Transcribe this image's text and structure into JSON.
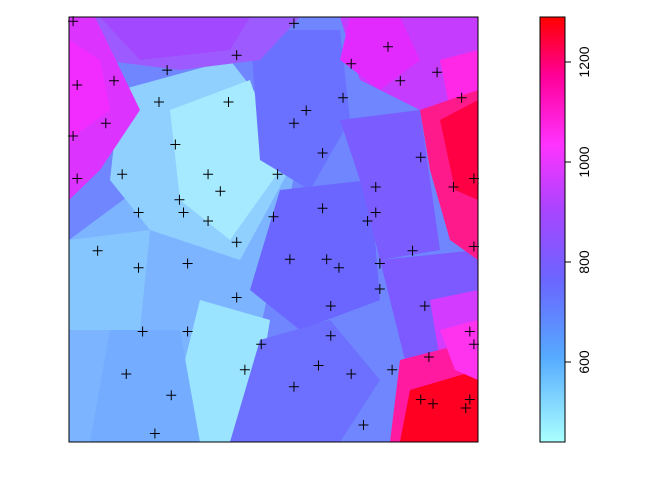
{
  "chart_data": {
    "type": "heatmap",
    "title": "",
    "xlabel": "",
    "ylabel": "",
    "axes_shown": false,
    "colorbar": {
      "range": [
        440,
        1290
      ],
      "ticks": [
        600,
        800,
        1000,
        1200
      ],
      "tick_labels": [
        "600",
        "800",
        "1000",
        "1200"
      ],
      "orientation": "vertical",
      "position": "right",
      "colors": [
        "#aaffff",
        "#55aaff",
        "#6a66ff",
        "#aa44ff",
        "#ff33ff",
        "#ff0066",
        "#ff0000"
      ]
    },
    "surface": {
      "interpolation": "nearest-neighbour/triangulated patches",
      "ranges": {
        "x": [
          0,
          1
        ],
        "y": [
          0,
          1
        ]
      },
      "regions": [
        {
          "label": "low values (cyan)",
          "center": [
            0.4,
            0.6
          ],
          "value": 520
        },
        {
          "label": "low values (cyan)",
          "center": [
            0.45,
            0.18
          ],
          "value": 540
        },
        {
          "label": "mid values (light blue)",
          "center": [
            0.15,
            0.35
          ],
          "value": 640
        },
        {
          "label": "mid values (blue)",
          "center": [
            0.65,
            0.45
          ],
          "value": 760
        },
        {
          "label": "high values (violet)",
          "center": [
            0.5,
            0.95
          ],
          "value": 860
        },
        {
          "label": "very high (magenta)",
          "center": [
            0.03,
            0.85
          ],
          "value": 1020
        },
        {
          "label": "very high (magenta)",
          "center": [
            0.75,
            0.9
          ],
          "value": 980
        },
        {
          "label": "peak (red)",
          "center": [
            0.96,
            0.72
          ],
          "value": 1200
        },
        {
          "label": "peak (red)",
          "center": [
            0.95,
            0.07
          ],
          "value": 1290
        }
      ]
    },
    "points": [
      {
        "x": 0.01,
        "y": 0.99
      },
      {
        "x": 0.55,
        "y": 0.985
      },
      {
        "x": 0.78,
        "y": 0.93
      },
      {
        "x": 0.41,
        "y": 0.91
      },
      {
        "x": 0.69,
        "y": 0.89
      },
      {
        "x": 0.24,
        "y": 0.875
      },
      {
        "x": 0.9,
        "y": 0.87
      },
      {
        "x": 0.81,
        "y": 0.85
      },
      {
        "x": 0.02,
        "y": 0.84
      },
      {
        "x": 0.11,
        "y": 0.85
      },
      {
        "x": 0.67,
        "y": 0.81
      },
      {
        "x": 0.22,
        "y": 0.8
      },
      {
        "x": 0.39,
        "y": 0.8
      },
      {
        "x": 0.96,
        "y": 0.81
      },
      {
        "x": 0.58,
        "y": 0.78
      },
      {
        "x": 0.09,
        "y": 0.75
      },
      {
        "x": 0.55,
        "y": 0.75
      },
      {
        "x": 0.01,
        "y": 0.72
      },
      {
        "x": 0.26,
        "y": 0.7
      },
      {
        "x": 0.62,
        "y": 0.68
      },
      {
        "x": 0.86,
        "y": 0.67
      },
      {
        "x": 0.13,
        "y": 0.63
      },
      {
        "x": 0.34,
        "y": 0.63
      },
      {
        "x": 0.51,
        "y": 0.63
      },
      {
        "x": 0.02,
        "y": 0.62
      },
      {
        "x": 0.75,
        "y": 0.6
      },
      {
        "x": 0.99,
        "y": 0.62
      },
      {
        "x": 0.94,
        "y": 0.6
      },
      {
        "x": 0.37,
        "y": 0.59
      },
      {
        "x": 0.27,
        "y": 0.57
      },
      {
        "x": 0.17,
        "y": 0.54
      },
      {
        "x": 0.28,
        "y": 0.54
      },
      {
        "x": 0.62,
        "y": 0.55
      },
      {
        "x": 0.75,
        "y": 0.54
      },
      {
        "x": 0.5,
        "y": 0.53
      },
      {
        "x": 0.34,
        "y": 0.52
      },
      {
        "x": 0.73,
        "y": 0.52
      },
      {
        "x": 0.41,
        "y": 0.47
      },
      {
        "x": 0.07,
        "y": 0.45
      },
      {
        "x": 0.84,
        "y": 0.45
      },
      {
        "x": 0.99,
        "y": 0.46
      },
      {
        "x": 0.54,
        "y": 0.43
      },
      {
        "x": 0.63,
        "y": 0.43
      },
      {
        "x": 0.29,
        "y": 0.42
      },
      {
        "x": 0.66,
        "y": 0.41
      },
      {
        "x": 0.17,
        "y": 0.41
      },
      {
        "x": 0.76,
        "y": 0.42
      },
      {
        "x": 0.76,
        "y": 0.36
      },
      {
        "x": 0.41,
        "y": 0.34
      },
      {
        "x": 0.64,
        "y": 0.32
      },
      {
        "x": 0.87,
        "y": 0.32
      },
      {
        "x": 0.18,
        "y": 0.26
      },
      {
        "x": 0.29,
        "y": 0.26
      },
      {
        "x": 0.64,
        "y": 0.25
      },
      {
        "x": 0.98,
        "y": 0.26
      },
      {
        "x": 0.99,
        "y": 0.23
      },
      {
        "x": 0.47,
        "y": 0.23
      },
      {
        "x": 0.88,
        "y": 0.2
      },
      {
        "x": 0.61,
        "y": 0.18
      },
      {
        "x": 0.43,
        "y": 0.17
      },
      {
        "x": 0.14,
        "y": 0.16
      },
      {
        "x": 0.69,
        "y": 0.16
      },
      {
        "x": 0.79,
        "y": 0.17
      },
      {
        "x": 0.55,
        "y": 0.13
      },
      {
        "x": 0.25,
        "y": 0.11
      },
      {
        "x": 0.86,
        "y": 0.1
      },
      {
        "x": 0.89,
        "y": 0.09
      },
      {
        "x": 0.98,
        "y": 0.1
      },
      {
        "x": 0.97,
        "y": 0.08
      },
      {
        "x": 0.72,
        "y": 0.04
      },
      {
        "x": 0.21,
        "y": 0.02
      }
    ]
  }
}
